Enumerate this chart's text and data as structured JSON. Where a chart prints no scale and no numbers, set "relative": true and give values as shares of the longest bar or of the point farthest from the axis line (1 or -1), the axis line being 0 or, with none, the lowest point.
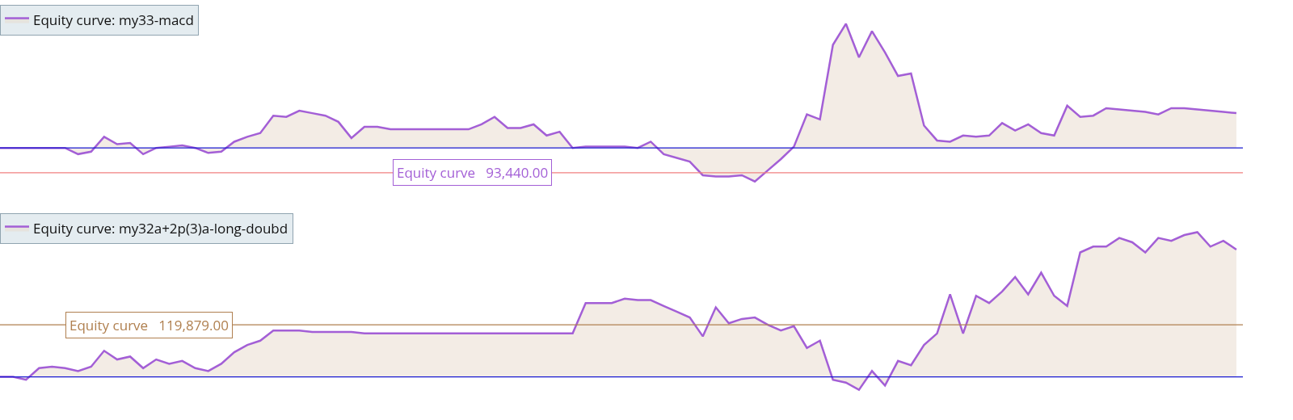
{
  "chart_data": [
    {
      "type": "area",
      "relative": true,
      "legend": "top left",
      "categories": [
        null,
        null,
        null,
        null,
        null,
        null,
        null,
        null,
        null,
        null,
        null,
        null,
        null,
        null,
        null,
        null,
        null,
        null,
        null,
        null,
        null,
        null,
        null,
        null,
        null,
        null,
        null,
        null,
        null,
        null,
        null,
        null,
        null,
        null,
        null,
        null,
        null,
        null,
        null,
        null,
        null,
        null,
        null,
        null,
        null,
        null,
        null,
        null,
        null,
        null,
        null,
        null,
        null,
        null,
        null,
        null,
        null,
        null,
        null,
        null,
        null,
        null,
        null,
        null,
        null,
        null,
        null,
        null,
        null,
        null,
        null,
        null,
        null,
        null,
        null,
        null,
        null,
        null,
        null,
        null,
        null,
        null,
        null,
        null,
        null,
        null,
        null,
        null,
        null,
        null,
        null,
        null,
        null,
        null,
        null,
        null
      ],
      "series": [
        {
          "name": "Equity curve: my33-macd",
          "color": "#a35fd6",
          "values": [
            0,
            0,
            0,
            0,
            0,
            0,
            -0.05,
            -0.03,
            0.09,
            0.03,
            0.04,
            -0.05,
            0,
            0.01,
            0.02,
            0,
            -0.04,
            -0.03,
            0.05,
            0.09,
            0.12,
            0.26,
            0.25,
            0.3,
            0.28,
            0.26,
            0.21,
            0.08,
            0.17,
            0.17,
            0.15,
            0.15,
            0.15,
            0.15,
            0.15,
            0.15,
            0.15,
            0.19,
            0.25,
            0.16,
            0.16,
            0.19,
            0.1,
            0.13,
            0,
            0.01,
            0.01,
            0.01,
            0.01,
            0,
            0.05,
            -0.05,
            -0.08,
            -0.11,
            -0.22,
            -0.23,
            -0.23,
            -0.22,
            -0.27,
            -0.18,
            -0.09,
            0.01,
            0.27,
            0.23,
            0.83,
            1,
            0.73,
            0.94,
            0.77,
            0.58,
            0.6,
            0.18,
            0.06,
            0.05,
            0.1,
            0.09,
            0.1,
            0.2,
            0.14,
            0.19,
            0.12,
            0.1,
            0.34,
            0.25,
            0.26,
            0.32,
            0.31,
            0.3,
            0.29,
            0.27,
            0.32,
            0.32,
            0.31,
            0.3,
            0.29,
            0.28
          ]
        }
      ],
      "ref_lines": [
        {
          "axis": "y",
          "value": 0,
          "color": "#1a1ad0"
        },
        {
          "axis": "y",
          "value": -0.2,
          "label": "Equity curve   93,440.00",
          "color": "#f08080"
        }
      ]
    },
    {
      "type": "area",
      "relative": true,
      "legend": "top left",
      "categories": [
        null,
        null,
        null,
        null,
        null,
        null,
        null,
        null,
        null,
        null,
        null,
        null,
        null,
        null,
        null,
        null,
        null,
        null,
        null,
        null,
        null,
        null,
        null,
        null,
        null,
        null,
        null,
        null,
        null,
        null,
        null,
        null,
        null,
        null,
        null,
        null,
        null,
        null,
        null,
        null,
        null,
        null,
        null,
        null,
        null,
        null,
        null,
        null,
        null,
        null,
        null,
        null,
        null,
        null,
        null,
        null,
        null,
        null,
        null,
        null,
        null,
        null,
        null,
        null,
        null,
        null,
        null,
        null,
        null,
        null,
        null,
        null,
        null,
        null,
        null,
        null,
        null,
        null,
        null,
        null,
        null,
        null,
        null,
        null,
        null,
        null,
        null,
        null,
        null,
        null,
        null,
        null,
        null,
        null,
        null,
        null
      ],
      "series": [
        {
          "name": "Equity curve: my32a+2p(3)a-long-doubd",
          "color": "#a35fd6",
          "values": [
            0,
            0,
            -0.02,
            0.06,
            0.07,
            0.06,
            0.04,
            0.07,
            0.18,
            0.12,
            0.14,
            0.06,
            0.12,
            0.09,
            0.11,
            0.06,
            0.04,
            0.09,
            0.17,
            0.22,
            0.25,
            0.32,
            0.32,
            0.32,
            0.31,
            0.31,
            0.31,
            0.31,
            0.3,
            0.3,
            0.3,
            0.3,
            0.3,
            0.3,
            0.3,
            0.3,
            0.3,
            0.3,
            0.3,
            0.3,
            0.3,
            0.3,
            0.3,
            0.3,
            0.3,
            0.51,
            0.51,
            0.51,
            0.54,
            0.53,
            0.53,
            0.49,
            0.45,
            0.41,
            0.28,
            0.48,
            0.37,
            0.4,
            0.41,
            0.36,
            0.32,
            0.35,
            0.2,
            0.25,
            -0.02,
            -0.04,
            -0.09,
            0.04,
            -0.06,
            0.11,
            0.08,
            0.22,
            0.3,
            0.57,
            0.3,
            0.56,
            0.51,
            0.59,
            0.69,
            0.57,
            0.72,
            0.56,
            0.49,
            0.86,
            0.9,
            0.9,
            0.96,
            0.93,
            0.86,
            0.96,
            0.94,
            0.98,
            1,
            0.9,
            0.94,
            0.88
          ]
        }
      ],
      "ref_lines": [
        {
          "axis": "y",
          "value": 0,
          "color": "#1a1ad0"
        },
        {
          "axis": "y",
          "value": 0.36,
          "label": "Equity curve   119,879.00",
          "color": "#b08050"
        }
      ]
    }
  ]
}
